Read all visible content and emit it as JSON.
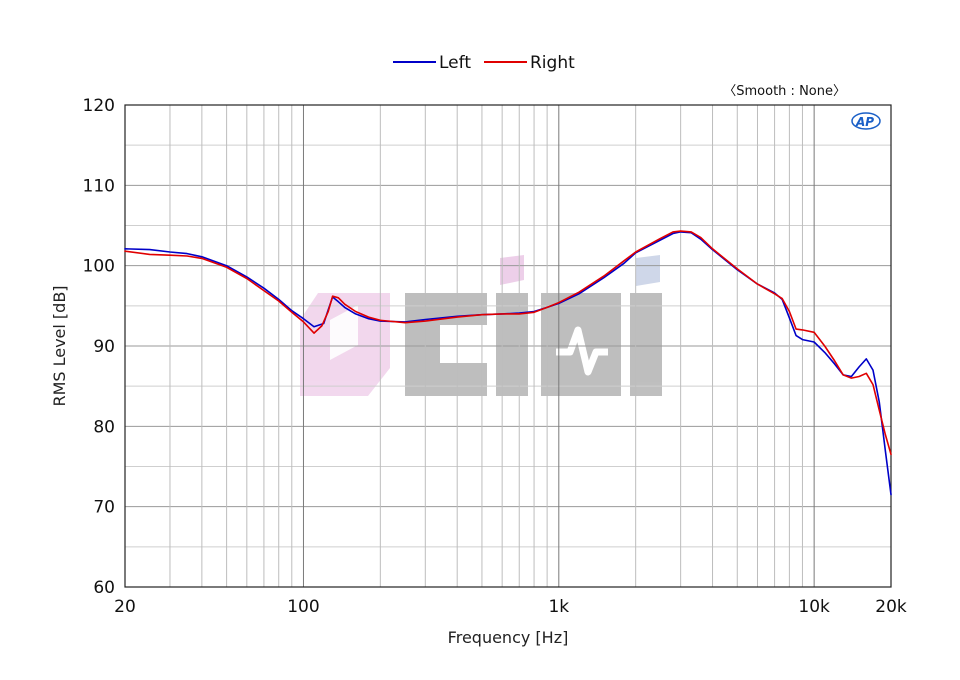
{
  "chart_data": {
    "type": "line",
    "xlabel": "Frequency [Hz]",
    "ylabel": "RMS Level [dB]",
    "x_scale": "log",
    "xlim": [
      20,
      20000
    ],
    "ylim": [
      60,
      120
    ],
    "grid": true,
    "legend_position": "top-center",
    "annotation": "〈Smooth : None〉",
    "logo_text": "AP",
    "watermark_text": "0ciHi",
    "x_ticks": [
      {
        "value": 20,
        "label": "20"
      },
      {
        "value": 100,
        "label": "100"
      },
      {
        "value": 1000,
        "label": "1k"
      },
      {
        "value": 10000,
        "label": "10k"
      },
      {
        "value": 20000,
        "label": "20k"
      }
    ],
    "y_ticks": [
      {
        "value": 60,
        "label": "60"
      },
      {
        "value": 70,
        "label": "70"
      },
      {
        "value": 80,
        "label": "80"
      },
      {
        "value": 90,
        "label": "90"
      },
      {
        "value": 100,
        "label": "100"
      },
      {
        "value": 110,
        "label": "110"
      },
      {
        "value": 120,
        "label": "120"
      }
    ],
    "series": [
      {
        "name": "Left",
        "color": "#0000c8",
        "x": [
          20,
          25,
          30,
          35,
          40,
          50,
          60,
          70,
          80,
          90,
          100,
          110,
          120,
          125,
          130,
          137,
          145,
          160,
          180,
          200,
          250,
          300,
          400,
          500,
          600,
          700,
          800,
          900,
          1000,
          1200,
          1500,
          1800,
          2000,
          2500,
          2800,
          3000,
          3300,
          3600,
          4000,
          5000,
          6000,
          7000,
          7500,
          8000,
          8500,
          9000,
          10000,
          11000,
          12000,
          13000,
          14000,
          15000,
          16000,
          17000,
          18000,
          19000,
          20000
        ],
        "y": [
          102.1,
          102.0,
          101.7,
          101.5,
          101.1,
          100.0,
          98.6,
          97.2,
          95.8,
          94.4,
          93.4,
          92.4,
          92.8,
          94.5,
          96.1,
          95.5,
          94.8,
          94.0,
          93.4,
          93.1,
          93.0,
          93.3,
          93.7,
          93.9,
          94.0,
          94.1,
          94.3,
          94.8,
          95.3,
          96.5,
          98.5,
          100.3,
          101.6,
          103.2,
          104.0,
          104.2,
          104.1,
          103.3,
          102.0,
          99.5,
          97.7,
          96.6,
          95.8,
          93.5,
          91.3,
          90.8,
          90.5,
          89.2,
          87.8,
          86.4,
          86.2,
          87.4,
          88.4,
          87.0,
          83.0,
          77.0,
          71.5
        ]
      },
      {
        "name": "Right",
        "color": "#e00000",
        "x": [
          20,
          25,
          30,
          35,
          40,
          50,
          60,
          70,
          80,
          90,
          100,
          110,
          118,
          125,
          130,
          137,
          145,
          160,
          180,
          200,
          250,
          300,
          400,
          500,
          600,
          700,
          800,
          900,
          1000,
          1200,
          1500,
          1800,
          2000,
          2500,
          2800,
          3000,
          3300,
          3600,
          4000,
          5000,
          6000,
          7000,
          7500,
          8000,
          8500,
          9000,
          10000,
          11000,
          12000,
          13000,
          14000,
          15000,
          16000,
          17000,
          18000,
          19000,
          20000
        ],
        "y": [
          101.8,
          101.4,
          101.3,
          101.2,
          100.9,
          99.8,
          98.4,
          96.9,
          95.6,
          94.2,
          93.0,
          91.6,
          92.5,
          94.3,
          96.2,
          96.0,
          95.2,
          94.3,
          93.6,
          93.2,
          92.9,
          93.1,
          93.6,
          93.9,
          94.0,
          94.0,
          94.2,
          94.8,
          95.4,
          96.7,
          98.7,
          100.6,
          101.7,
          103.4,
          104.2,
          104.3,
          104.2,
          103.5,
          102.1,
          99.6,
          97.7,
          96.5,
          95.9,
          94.3,
          92.1,
          92.0,
          91.7,
          90.0,
          88.2,
          86.4,
          86.0,
          86.2,
          86.6,
          85.2,
          82.0,
          79.0,
          76.5
        ]
      }
    ]
  }
}
